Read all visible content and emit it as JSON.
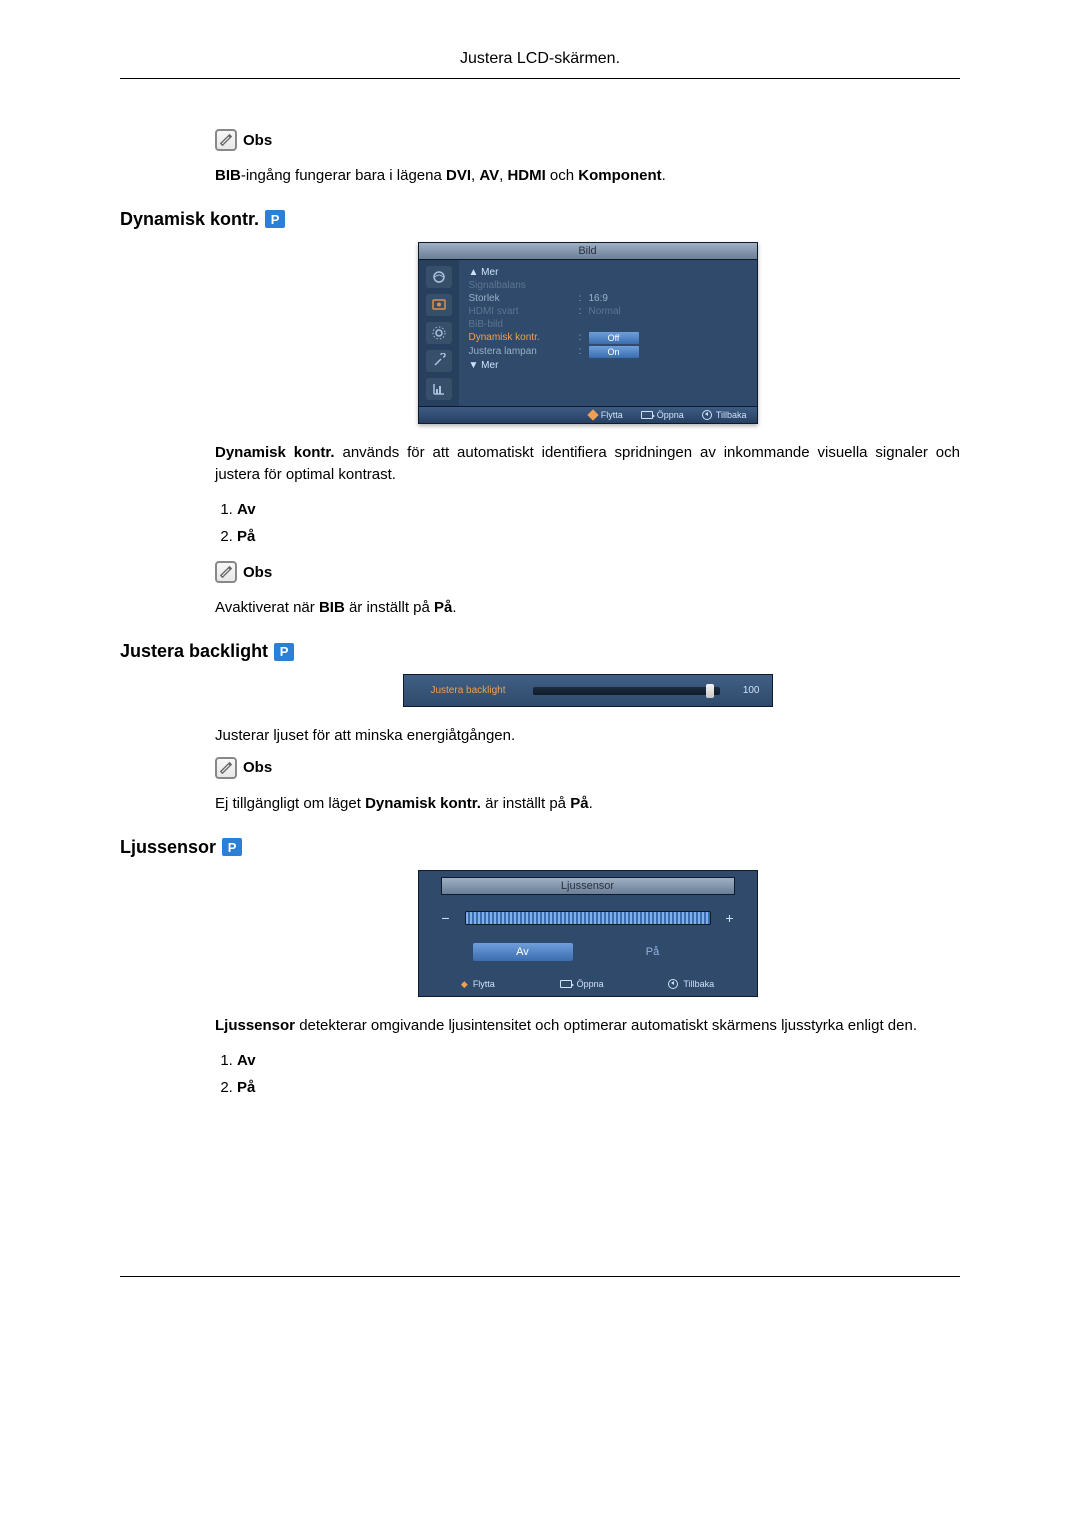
{
  "page": {
    "header": "Justera LCD-skärmen."
  },
  "intro": {
    "note_label": "Obs",
    "note_text_parts": {
      "p1": "BIB",
      "p2": "-ingång fungerar bara i lägena ",
      "p3": "DVI",
      "c1": ", ",
      "p4": "AV",
      "c2": ", ",
      "p5": "HDMI",
      "p6": " och ",
      "p7": "Komponent",
      "p8": "."
    }
  },
  "section1": {
    "title": "Dynamisk kontr.",
    "badge": "P",
    "osd": {
      "title": "Bild",
      "arrow_up": "▲ Mer",
      "arrow_down": "▼ Mer",
      "items": [
        {
          "label": "Signalbalans",
          "value": "",
          "dim": true
        },
        {
          "label": "Storlek",
          "value": "16:9",
          "dim": false
        },
        {
          "label": "HDMI svart",
          "value": "Normal",
          "dim": true
        },
        {
          "label": "BiB-bild",
          "value": "",
          "dim": true
        },
        {
          "label": "Dynamisk kontr.",
          "value": "Off",
          "hl": true,
          "pill": true
        },
        {
          "label": "Justera lampan",
          "value": "On",
          "dim": false,
          "pill": true
        }
      ],
      "footer": {
        "move": "Flytta",
        "open": "Öppna",
        "back": "Tillbaka"
      },
      "colors": {
        "bg": "#2f4a6b",
        "title_grad_top": "#9fb0c4",
        "title_grad_bot": "#6a7e96",
        "highlight": "#f0a050",
        "pill_top": "#6f9edb",
        "pill_bot": "#3a6db0",
        "text": "#9ab0c8",
        "dim_text": "#5f7590"
      }
    },
    "desc_parts": {
      "p1": "Dynamisk kontr.",
      "p2": " används för att automatiskt identifiera spridningen av inkommande visuella signaler och justera för optimal kontrast."
    },
    "list": [
      "Av",
      "På"
    ],
    "note_label": "Obs",
    "note2_parts": {
      "p1": "Avaktiverat när ",
      "p2": "BIB",
      "p3": " är inställt på ",
      "p4": "På",
      "p5": "."
    }
  },
  "section2": {
    "title": "Justera backlight",
    "badge": "P",
    "osd": {
      "label": "Justera backlight",
      "value": "100",
      "thumb_pct": 93,
      "colors": {
        "bg_top": "#415f85",
        "bg_bot": "#2f4a6b",
        "label": "#f0a050",
        "text": "#cfe2f8"
      }
    },
    "desc": "Justerar ljuset för att minska energiåtgången.",
    "note_label": "Obs",
    "note_parts": {
      "p1": "Ej tillgängligt om läget ",
      "p2": "Dynamisk kontr.",
      "p3": " är inställt på ",
      "p4": "På",
      "p5": "."
    }
  },
  "section3": {
    "title": "Ljussensor",
    "badge": "P",
    "osd": {
      "title": "Ljussensor",
      "minus": "−",
      "plus": "+",
      "btn_off": "Av",
      "btn_on": "På",
      "footer": {
        "move": "Flytta",
        "open": "Öppna",
        "back": "Tillbaka"
      },
      "colors": {
        "bg": "#2f4a6b",
        "sel_top": "#6f9edb",
        "sel_bot": "#3a6db0",
        "text": "#cfe2f8"
      }
    },
    "desc_parts": {
      "p1": "Ljussensor",
      "p2": " detekterar omgivande ljusintensitet och optimerar automatiskt skärmens ljusstyrka enligt den."
    },
    "list": [
      "Av",
      "På"
    ]
  }
}
